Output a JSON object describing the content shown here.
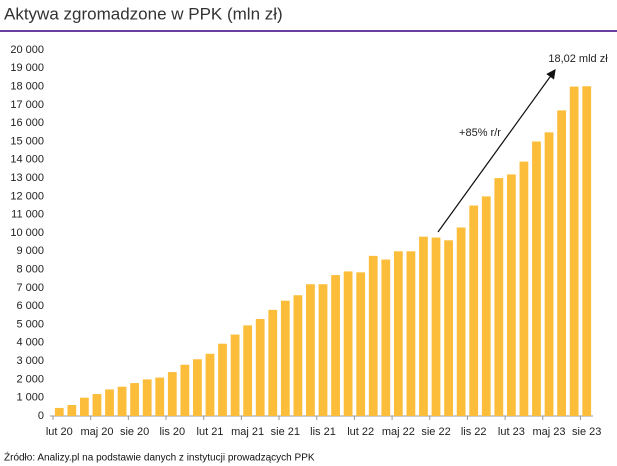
{
  "chart_data": {
    "type": "bar",
    "title": "Aktywa zgromadzone w PPK (mln zł)",
    "source": "Źródło: Analizy.pl na podstawie danych z instytucji prowadzących PPK",
    "annotations": [
      "+85% r/r",
      "18,02 mld zł"
    ],
    "color": "#fbbd3a",
    "categories": [
      "lut 20",
      null,
      null,
      "maj 20",
      null,
      null,
      "sie 20",
      null,
      null,
      "lis 20",
      null,
      null,
      "lut 21",
      null,
      null,
      "maj 21",
      null,
      null,
      "sie 21",
      null,
      null,
      "lis 21",
      null,
      null,
      "lut 22",
      null,
      null,
      "maj 22",
      null,
      null,
      "sie 22",
      null,
      null,
      "lis 22",
      null,
      null,
      "lut 23",
      null,
      null,
      "maj 23",
      null,
      null,
      "sie 23"
    ],
    "values": [
      440,
      600,
      1000,
      1200,
      1450,
      1600,
      1800,
      2000,
      2100,
      2400,
      2800,
      3100,
      3400,
      3950,
      4450,
      4950,
      5300,
      5800,
      6300,
      6600,
      7200,
      7200,
      7700,
      7900,
      7850,
      8750,
      8550,
      9000,
      9000,
      9800,
      9750,
      9600,
      10300,
      11500,
      12000,
      13000,
      13200,
      13900,
      15000,
      15500,
      16700,
      18000,
      18020
    ],
    "ylim": [
      0,
      20000
    ],
    "yticks": [
      0,
      {
        "value": 1000,
        "label": "1 000"
      },
      {
        "value": 2000,
        "label": "2 000"
      },
      {
        "value": 3000,
        "label": "3 000"
      },
      {
        "value": 4000,
        "label": "4 000"
      },
      {
        "value": 5000,
        "label": "5 000"
      },
      {
        "value": 6000,
        "label": "6 000"
      },
      {
        "value": 7000,
        "label": "7 000"
      },
      {
        "value": 8000,
        "label": "8 000"
      },
      {
        "value": 9000,
        "label": "9 000"
      },
      {
        "value": 10000,
        "label": "10 000"
      },
      {
        "value": 11000,
        "label": "11 000"
      },
      {
        "value": 12000,
        "label": "12 000"
      },
      {
        "value": 13000,
        "label": "13 000"
      },
      {
        "value": 14000,
        "label": "14 000"
      },
      {
        "value": 15000,
        "label": "15 000"
      },
      {
        "value": 16000,
        "label": "16 000"
      },
      {
        "value": 17000,
        "label": "17 000"
      },
      {
        "value": 18000,
        "label": "18 000"
      },
      {
        "value": 19000,
        "label": "19 000"
      },
      {
        "value": 20000,
        "label": "20 000"
      }
    ],
    "grid": false
  }
}
